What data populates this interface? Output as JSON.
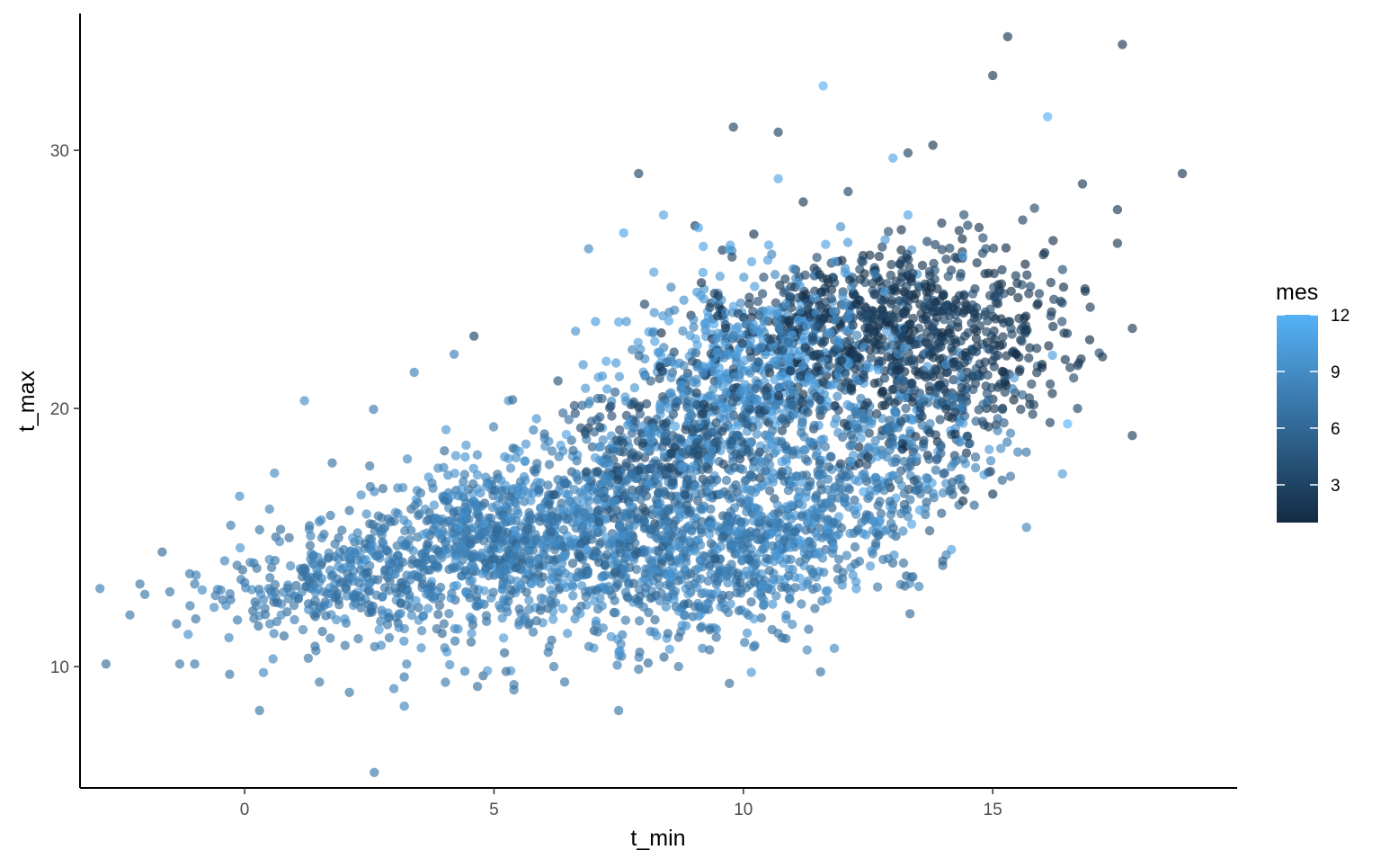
{
  "chart_data": {
    "type": "scatter",
    "xlabel": "t_min",
    "ylabel": "t_max",
    "xlim": [
      -3.3,
      19.9
    ],
    "ylim": [
      5.3,
      35.3
    ],
    "x_ticks": [
      0,
      5,
      10,
      15
    ],
    "y_ticks": [
      10,
      20,
      30
    ],
    "x_tick_labels": [
      "0",
      "5",
      "10",
      "15"
    ],
    "y_tick_labels": [
      "10",
      "20",
      "30"
    ],
    "grid": false,
    "legend": {
      "title": "mes",
      "type": "continuous-colorbar",
      "position": "right",
      "range": [
        1,
        12
      ],
      "breaks": [
        3,
        6,
        9,
        12
      ],
      "break_labels": [
        "3",
        "6",
        "9",
        "12"
      ],
      "color_low": "#132B43",
      "color_high": "#56B1F7"
    },
    "point_alpha": 0.65,
    "outlier_points": [
      {
        "x": 15.3,
        "y": 34.4,
        "mes": 2
      },
      {
        "x": 17.6,
        "y": 34.1,
        "mes": 2
      },
      {
        "x": 15.0,
        "y": 32.9,
        "mes": 2
      },
      {
        "x": 11.6,
        "y": 32.5,
        "mes": 12
      },
      {
        "x": 16.1,
        "y": 31.3,
        "mes": 12
      },
      {
        "x": 9.8,
        "y": 30.9,
        "mes": 3
      },
      {
        "x": 10.7,
        "y": 30.7,
        "mes": 3
      },
      {
        "x": 13.8,
        "y": 30.2,
        "mes": 2
      },
      {
        "x": 13.3,
        "y": 29.9,
        "mes": 3
      },
      {
        "x": 13.0,
        "y": 29.7,
        "mes": 11
      },
      {
        "x": 18.8,
        "y": 29.1,
        "mes": 2
      },
      {
        "x": 7.9,
        "y": 29.1,
        "mes": 3
      },
      {
        "x": 10.7,
        "y": 28.9,
        "mes": 11
      },
      {
        "x": 16.8,
        "y": 28.7,
        "mes": 2
      },
      {
        "x": 17.5,
        "y": 27.7,
        "mes": 2
      },
      {
        "x": 8.4,
        "y": 27.5,
        "mes": 11
      },
      {
        "x": 17.5,
        "y": 26.4,
        "mes": 2
      },
      {
        "x": 17.8,
        "y": 23.1,
        "mes": 2
      },
      {
        "x": 17.2,
        "y": 22.0,
        "mes": 2
      },
      {
        "x": 16.7,
        "y": 20.0,
        "mes": 3
      },
      {
        "x": 16.5,
        "y": 19.4,
        "mes": 12
      },
      {
        "x": 7.6,
        "y": 26.8,
        "mes": 11
      },
      {
        "x": 4.6,
        "y": 22.8,
        "mes": 3
      },
      {
        "x": 4.2,
        "y": 22.1,
        "mes": 8
      },
      {
        "x": 3.4,
        "y": 21.4,
        "mes": 8
      },
      {
        "x": 1.2,
        "y": 20.3,
        "mes": 9
      },
      {
        "x": 0.6,
        "y": 17.5,
        "mes": 9
      },
      {
        "x": -0.1,
        "y": 16.6,
        "mes": 9
      },
      {
        "x": 0.5,
        "y": 16.1,
        "mes": 8
      },
      {
        "x": 0.3,
        "y": 15.3,
        "mes": 7
      },
      {
        "x": -0.4,
        "y": 14.1,
        "mes": 8
      },
      {
        "x": -1.1,
        "y": 13.6,
        "mes": 7
      },
      {
        "x": -2.1,
        "y": 13.2,
        "mes": 7
      },
      {
        "x": -2.0,
        "y": 12.8,
        "mes": 7
      },
      {
        "x": -1.5,
        "y": 12.9,
        "mes": 7
      },
      {
        "x": -2.3,
        "y": 12.0,
        "mes": 7
      },
      {
        "x": -1.3,
        "y": 10.1,
        "mes": 7
      },
      {
        "x": -1.0,
        "y": 10.1,
        "mes": 7
      },
      {
        "x": -0.3,
        "y": 9.7,
        "mes": 7
      },
      {
        "x": 0.3,
        "y": 8.3,
        "mes": 7
      },
      {
        "x": 1.5,
        "y": 9.4,
        "mes": 7
      },
      {
        "x": 2.1,
        "y": 9.0,
        "mes": 7
      },
      {
        "x": 2.6,
        "y": 5.9,
        "mes": 7
      },
      {
        "x": 5.4,
        "y": 9.3,
        "mes": 7
      },
      {
        "x": 5.4,
        "y": 9.1,
        "mes": 7
      },
      {
        "x": 7.5,
        "y": 8.3,
        "mes": 7
      },
      {
        "x": 7.9,
        "y": 9.9,
        "mes": 7
      },
      {
        "x": 8.7,
        "y": 10.0,
        "mes": 7
      },
      {
        "x": 6.2,
        "y": 10.0,
        "mes": 7
      },
      {
        "x": 3.2,
        "y": 9.6,
        "mes": 7
      },
      {
        "x": 13.3,
        "y": 27.5,
        "mes": 11
      },
      {
        "x": 9.1,
        "y": 27.0,
        "mes": 11
      },
      {
        "x": 14.4,
        "y": 25.9,
        "mes": 11
      },
      {
        "x": 15.6,
        "y": 27.3,
        "mes": 3
      },
      {
        "x": 11.2,
        "y": 28.0,
        "mes": 2
      },
      {
        "x": 12.1,
        "y": 28.4,
        "mes": 3
      }
    ],
    "clusters": [
      {
        "cx": 1.8,
        "cy": 13.4,
        "sx": 1.35,
        "sy": 1.1,
        "n": 320,
        "mes_lo": 6,
        "mes_hi": 9
      },
      {
        "cx": 4.9,
        "cy": 14.8,
        "sx": 1.5,
        "sy": 1.7,
        "n": 680,
        "mes_lo": 6,
        "mes_hi": 10
      },
      {
        "cx": 7.6,
        "cy": 15.4,
        "sx": 1.5,
        "sy": 2.0,
        "n": 620,
        "mes_lo": 5,
        "mes_hi": 10
      },
      {
        "cx": 10.0,
        "cy": 14.2,
        "sx": 1.4,
        "sy": 1.6,
        "n": 560,
        "mes_lo": 6,
        "mes_hi": 10
      },
      {
        "cx": 10.2,
        "cy": 21.6,
        "sx": 1.4,
        "sy": 1.8,
        "n": 560,
        "mes_lo": 8,
        "mes_hi": 11
      },
      {
        "cx": 12.6,
        "cy": 17.8,
        "sx": 1.3,
        "sy": 2.0,
        "n": 440,
        "mes_lo": 5,
        "mes_hi": 11
      },
      {
        "cx": 12.2,
        "cy": 23.2,
        "sx": 1.6,
        "sy": 1.4,
        "n": 620,
        "mes_lo": 1,
        "mes_hi": 4
      },
      {
        "cx": 14.3,
        "cy": 21.6,
        "sx": 1.1,
        "sy": 1.7,
        "n": 340,
        "mes_lo": 1,
        "mes_hi": 4
      },
      {
        "cx": 8.7,
        "cy": 18.6,
        "sx": 1.2,
        "sy": 1.5,
        "n": 320,
        "mes_lo": 3,
        "mes_hi": 6
      }
    ]
  }
}
